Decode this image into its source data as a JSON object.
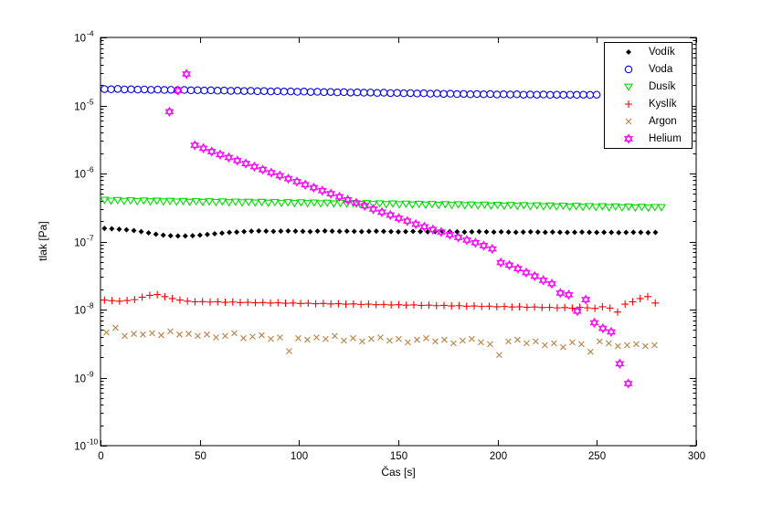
{
  "figure": {
    "background": "#ffffff",
    "axis_color": "#000000"
  },
  "chart_data": {
    "type": "scatter",
    "title": "",
    "xlabel": "Čas [s]",
    "ylabel": "tlak [Pa]",
    "xlim": [
      0,
      300
    ],
    "x_ticks": [
      0,
      50,
      100,
      150,
      200,
      250,
      300
    ],
    "y_scale": "log",
    "ylim_exponents": [
      -10,
      -4
    ],
    "y_tick_exponents": [
      -4,
      -5,
      -6,
      -7,
      -8,
      -9,
      -10
    ],
    "grid": false,
    "legend_position": "top-right",
    "series": [
      {
        "name": "Vodík",
        "marker": "diamond",
        "color": "#000000",
        "scale": 1e-07,
        "t0": 2,
        "dt": 3.7,
        "values": [
          1.56,
          1.54,
          1.52,
          1.49,
          1.45,
          1.4,
          1.34,
          1.28,
          1.24,
          1.22,
          1.21,
          1.21,
          1.22,
          1.24,
          1.27,
          1.3,
          1.33,
          1.36,
          1.38,
          1.4,
          1.42,
          1.43,
          1.42,
          1.41,
          1.42,
          1.43,
          1.42,
          1.41,
          1.4,
          1.42,
          1.43,
          1.42,
          1.41,
          1.42,
          1.41,
          1.4,
          1.41,
          1.42,
          1.41,
          1.4,
          1.39,
          1.4,
          1.41,
          1.4,
          1.39,
          1.4,
          1.41,
          1.4,
          1.39,
          1.38,
          1.39,
          1.4,
          1.39,
          1.38,
          1.39,
          1.38,
          1.37,
          1.38,
          1.39,
          1.38,
          1.37,
          1.38,
          1.37,
          1.36,
          1.37,
          1.38,
          1.37,
          1.36,
          1.37,
          1.36,
          1.35,
          1.36,
          1.37,
          1.36,
          1.35,
          1.36
        ]
      },
      {
        "name": "Voda",
        "marker": "circle",
        "color": "#0000EE",
        "scale": 1e-05,
        "t0": 2,
        "dt": 3.35,
        "values": [
          1.74,
          1.73,
          1.75,
          1.72,
          1.73,
          1.71,
          1.72,
          1.7,
          1.71,
          1.69,
          1.7,
          1.68,
          1.69,
          1.67,
          1.68,
          1.66,
          1.67,
          1.65,
          1.66,
          1.64,
          1.65,
          1.63,
          1.64,
          1.62,
          1.63,
          1.61,
          1.62,
          1.6,
          1.61,
          1.59,
          1.6,
          1.58,
          1.59,
          1.57,
          1.58,
          1.56,
          1.57,
          1.55,
          1.56,
          1.54,
          1.55,
          1.53,
          1.54,
          1.52,
          1.53,
          1.51,
          1.52,
          1.5,
          1.51,
          1.49,
          1.5,
          1.48,
          1.49,
          1.47,
          1.48,
          1.46,
          1.47,
          1.46,
          1.47,
          1.45,
          1.46,
          1.45,
          1.46,
          1.44,
          1.45,
          1.44,
          1.45,
          1.43,
          1.44,
          1.43,
          1.44,
          1.43,
          1.44,
          1.43,
          1.44
        ]
      },
      {
        "name": "Dusík",
        "marker": "triangle-down",
        "color": "#00DD00",
        "scale": 1e-07,
        "t0": 2,
        "dt": 3.3,
        "values": [
          4.1,
          3.98,
          4.07,
          3.95,
          4.04,
          3.92,
          4.01,
          3.9,
          3.99,
          3.88,
          3.96,
          3.86,
          3.94,
          3.84,
          3.92,
          3.82,
          3.9,
          3.8,
          3.88,
          3.78,
          3.86,
          3.76,
          3.84,
          3.74,
          3.82,
          3.72,
          3.8,
          3.7,
          3.78,
          3.68,
          3.76,
          3.66,
          3.74,
          3.64,
          3.72,
          3.62,
          3.7,
          3.6,
          3.68,
          3.58,
          3.66,
          3.56,
          3.64,
          3.54,
          3.62,
          3.52,
          3.6,
          3.5,
          3.58,
          3.48,
          3.56,
          3.46,
          3.54,
          3.44,
          3.52,
          3.42,
          3.5,
          3.4,
          3.48,
          3.38,
          3.46,
          3.36,
          3.44,
          3.34,
          3.42,
          3.32,
          3.4,
          3.3,
          3.38,
          3.28,
          3.36,
          3.26,
          3.34,
          3.24,
          3.32,
          3.22,
          3.3,
          3.2,
          3.28,
          3.18,
          3.26,
          3.16,
          3.24,
          3.14,
          3.22,
          3.2
        ]
      },
      {
        "name": "Kyslík",
        "marker": "plus",
        "color": "#FF0000",
        "scale": 1e-08,
        "t0": 2,
        "dt": 3.8,
        "values": [
          1.38,
          1.35,
          1.33,
          1.36,
          1.4,
          1.52,
          1.62,
          1.66,
          1.55,
          1.45,
          1.38,
          1.33,
          1.3,
          1.31,
          1.29,
          1.3,
          1.28,
          1.29,
          1.27,
          1.28,
          1.26,
          1.27,
          1.25,
          1.26,
          1.24,
          1.25,
          1.23,
          1.24,
          1.22,
          1.23,
          1.21,
          1.22,
          1.2,
          1.21,
          1.19,
          1.2,
          1.18,
          1.19,
          1.17,
          1.18,
          1.16,
          1.17,
          1.15,
          1.16,
          1.14,
          1.15,
          1.13,
          1.14,
          1.12,
          1.13,
          1.11,
          1.12,
          1.1,
          1.11,
          1.09,
          1.1,
          1.08,
          1.09,
          1.07,
          1.08,
          1.06,
          1.07,
          1.05,
          1.08,
          1.06,
          1.04,
          1.1,
          1.05,
          0.92,
          1.2,
          1.3,
          1.45,
          1.55,
          1.25
        ]
      },
      {
        "name": "Argon",
        "marker": "x",
        "color": "#BF8040",
        "scale": 1e-09,
        "t0": 3,
        "dt": 4.6,
        "values": [
          4.6,
          5.4,
          4.1,
          4.4,
          4.3,
          4.5,
          4.2,
          4.8,
          4.3,
          4.4,
          4.1,
          4.3,
          3.9,
          4.1,
          4.5,
          3.8,
          4.0,
          4.2,
          3.7,
          3.9,
          2.45,
          3.8,
          3.6,
          3.9,
          3.7,
          4.1,
          3.5,
          3.8,
          3.4,
          3.7,
          3.9,
          3.5,
          3.7,
          3.3,
          3.6,
          3.8,
          3.4,
          3.6,
          3.2,
          3.5,
          3.7,
          3.3,
          3.1,
          2.15,
          3.4,
          3.6,
          3.2,
          3.4,
          3.0,
          3.2,
          2.8,
          3.3,
          3.1,
          2.4,
          3.4,
          3.2,
          2.9,
          3.0,
          3.1,
          2.9,
          3.0
        ]
      },
      {
        "name": "Helium",
        "marker": "hexagram",
        "color": "#FF00FF",
        "scale": 1,
        "t": [
          34.7,
          39,
          43.3,
          47.5,
          51.8,
          56,
          60.3,
          64.6,
          68.9,
          73.2,
          77.5,
          81.7,
          86,
          90.3,
          94.6,
          98.9,
          103.1,
          107.4,
          111.7,
          116,
          120.3,
          124.5,
          128.8,
          133.1,
          137.4,
          141.7,
          146,
          150.2,
          154.5,
          158.8,
          163.1,
          167.4,
          171.6,
          175.9,
          180.2,
          184.5,
          188.8,
          193,
          197.3,
          201.6,
          205.9,
          210.2,
          214.4,
          218.7,
          223,
          227.3,
          231.6,
          235.8,
          240.1,
          244.4,
          248.7,
          253,
          257.2,
          261.5,
          265.8
        ],
        "values": [
          8.1e-06,
          1.66e-05,
          2.9e-05,
          2.6e-06,
          2.35e-06,
          2.1e-06,
          1.9e-06,
          1.72e-06,
          1.55e-06,
          1.4e-06,
          1.26e-06,
          1.14e-06,
          1.03e-06,
          9.3e-07,
          8.4e-07,
          7.6e-07,
          6.85e-07,
          6.2e-07,
          5.6e-07,
          5.05e-07,
          4.55e-07,
          4.1e-07,
          3.7e-07,
          3.35e-07,
          3e-07,
          2.7e-07,
          2.45e-07,
          2.2e-07,
          2e-07,
          1.8e-07,
          1.65e-07,
          1.5e-07,
          1.38e-07,
          1.26e-07,
          1.15e-07,
          1.05e-07,
          9.6e-08,
          8.7e-08,
          7.8e-08,
          4.9e-08,
          4.5e-08,
          4e-08,
          3.5e-08,
          3.1e-08,
          2.7e-08,
          2.4e-08,
          1.75e-08,
          1.65e-08,
          9.5e-09,
          1.4e-08,
          6.4e-09,
          5.3e-09,
          4.7e-09,
          1.6e-09,
          8.2e-10
        ]
      }
    ]
  }
}
